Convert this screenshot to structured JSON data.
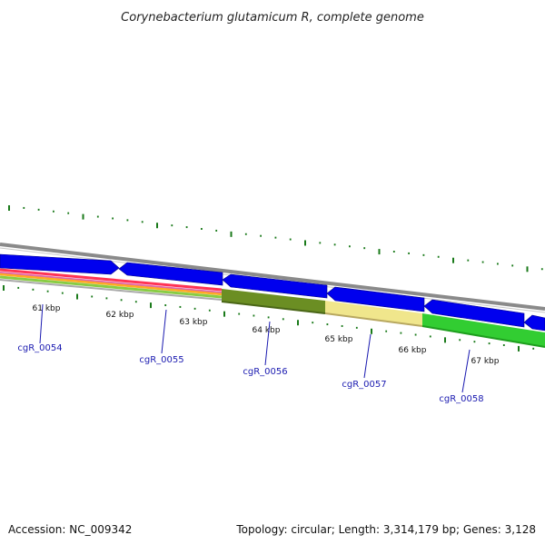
{
  "title": "Corynebacterium glutamicum R, complete genome",
  "footer": {
    "accession": "Accession: NC_009342",
    "summary": "Topology: circular; Length: 3,314,179 bp; Genes: 3,128"
  },
  "kbp_labels": [
    "61 kbp",
    "62 kbp",
    "63 kbp",
    "64 kbp",
    "65 kbp",
    "66 kbp",
    "67 kbp"
  ],
  "gene_labels": [
    "cgR_0054",
    "cgR_0055",
    "cgR_0056",
    "cgR_0057",
    "cgR_0058"
  ],
  "colors": {
    "cds": "#0000ee",
    "backbone": "#8a8a8a",
    "tick": "#1a7a1a",
    "gene_label": "#1a1ab0",
    "olive": "#6b8e23",
    "khaki": "#f0e68c",
    "green": "#32cd32"
  }
}
